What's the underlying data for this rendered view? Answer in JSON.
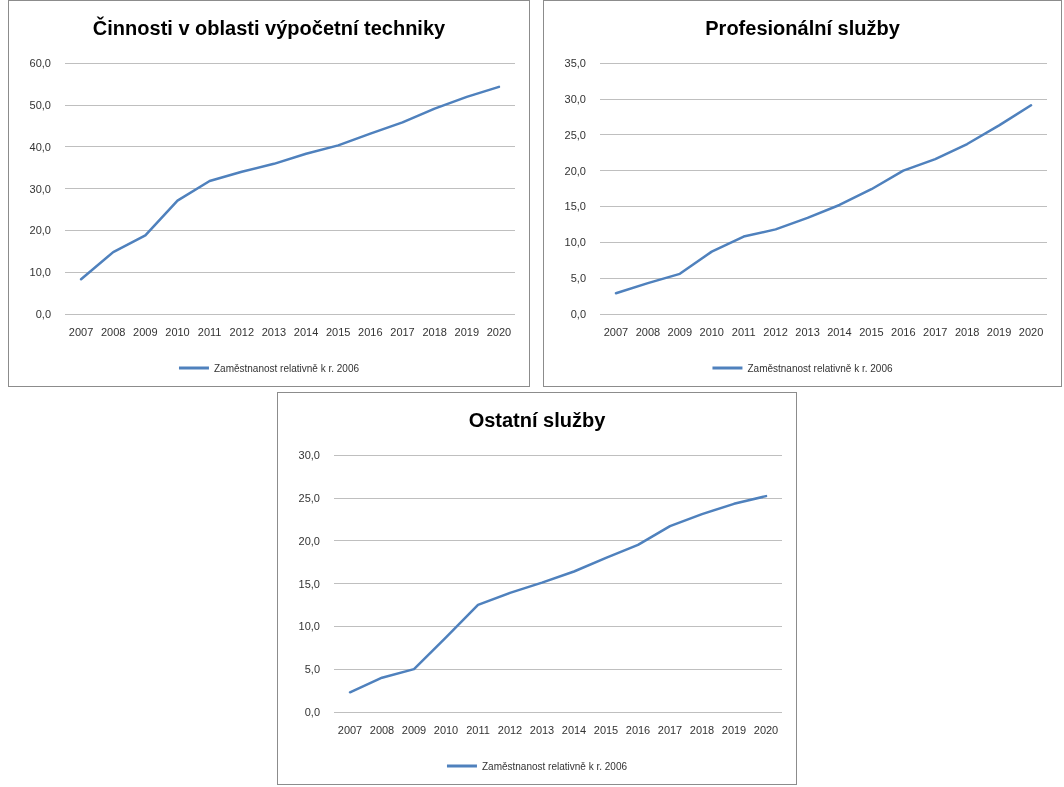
{
  "chart_data": [
    {
      "type": "line",
      "title": "Činnosti v oblasti výpočetní techniky",
      "categories": [
        "2007",
        "2008",
        "2009",
        "2010",
        "2011",
        "2012",
        "2013",
        "2014",
        "2015",
        "2016",
        "2017",
        "2018",
        "2019",
        "2020"
      ],
      "series": [
        {
          "name": "Zaměstnanost relativně k r. 2006",
          "color": "#4f81bd",
          "values": [
            8.3,
            14.8,
            18.8,
            27.1,
            31.8,
            34.0,
            35.9,
            38.3,
            40.3,
            43.1,
            45.8,
            49.1,
            51.9,
            54.3
          ]
        }
      ],
      "ylim": [
        0,
        60
      ],
      "yticks": [
        {
          "value": 0,
          "label": "0,0"
        },
        {
          "value": 10,
          "label": "10,0"
        },
        {
          "value": 20,
          "label": "20,0"
        },
        {
          "value": 30,
          "label": "30,0"
        },
        {
          "value": 40,
          "label": "40,0"
        },
        {
          "value": 50,
          "label": "50,0"
        },
        {
          "value": 60,
          "label": "60,0"
        }
      ],
      "grid": "y",
      "legend": "bottom",
      "marker": "none",
      "line_style": "solid"
    },
    {
      "type": "line",
      "title": "Profesionální služby",
      "categories": [
        "2007",
        "2008",
        "2009",
        "2010",
        "2011",
        "2012",
        "2013",
        "2014",
        "2015",
        "2016",
        "2017",
        "2018",
        "2019",
        "2020"
      ],
      "series": [
        {
          "name": "Zaměstnanost relativně k r. 2006",
          "color": "#4f81bd",
          "values": [
            2.9,
            4.3,
            5.6,
            8.7,
            10.8,
            11.8,
            13.4,
            15.2,
            17.4,
            20.0,
            21.6,
            23.7,
            26.3,
            29.1
          ]
        }
      ],
      "ylim": [
        0,
        35
      ],
      "yticks": [
        {
          "value": 0,
          "label": "0,0"
        },
        {
          "value": 5,
          "label": "5,0"
        },
        {
          "value": 10,
          "label": "10,0"
        },
        {
          "value": 15,
          "label": "15,0"
        },
        {
          "value": 20,
          "label": "20,0"
        },
        {
          "value": 25,
          "label": "25,0"
        },
        {
          "value": 30,
          "label": "30,0"
        },
        {
          "value": 35,
          "label": "35,0"
        }
      ],
      "grid": "y",
      "legend": "bottom",
      "marker": "none",
      "line_style": "solid"
    },
    {
      "type": "line",
      "title": "Ostatní služby",
      "categories": [
        "2007",
        "2008",
        "2009",
        "2010",
        "2011",
        "2012",
        "2013",
        "2014",
        "2015",
        "2016",
        "2017",
        "2018",
        "2019",
        "2020"
      ],
      "series": [
        {
          "name": "Zaměstnanost relativně k r. 2006",
          "color": "#4f81bd",
          "values": [
            2.3,
            4.0,
            5.0,
            8.7,
            12.5,
            13.9,
            15.1,
            16.4,
            18.0,
            19.5,
            21.7,
            23.1,
            24.3,
            25.2
          ]
        }
      ],
      "ylim": [
        0,
        30
      ],
      "yticks": [
        {
          "value": 0,
          "label": "0,0"
        },
        {
          "value": 5,
          "label": "5,0"
        },
        {
          "value": 10,
          "label": "10,0"
        },
        {
          "value": 15,
          "label": "15,0"
        },
        {
          "value": 20,
          "label": "20,0"
        },
        {
          "value": 25,
          "label": "25,0"
        },
        {
          "value": 30,
          "label": "30,0"
        }
      ],
      "grid": "y",
      "legend": "bottom",
      "marker": "none",
      "line_style": "solid"
    }
  ]
}
